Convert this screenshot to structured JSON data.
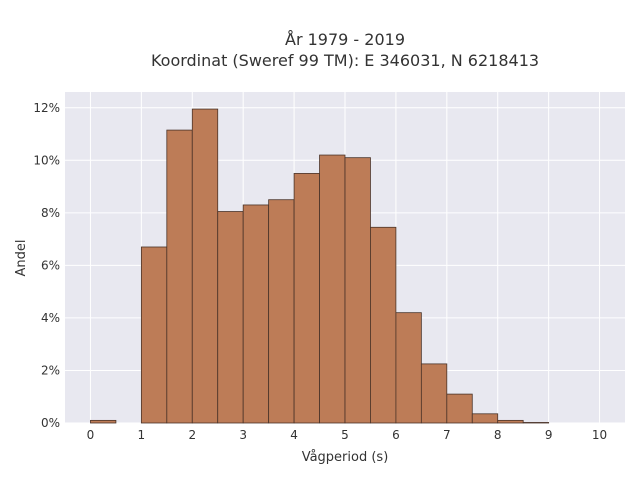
{
  "chart_data": {
    "type": "bar",
    "title_lines": [
      "År 1979 - 2019",
      "Koordinat (Sweref 99 TM): E 346031, N 6218413"
    ],
    "xlabel": "Vågperiod (s)",
    "ylabel": "Andel",
    "bin_width": 0.5,
    "bins": [
      {
        "x0": 0.0,
        "x1": 0.5,
        "value": 0.1
      },
      {
        "x0": 0.5,
        "x1": 1.0,
        "value": 0.0
      },
      {
        "x0": 1.0,
        "x1": 1.5,
        "value": 6.7
      },
      {
        "x0": 1.5,
        "x1": 2.0,
        "value": 11.15
      },
      {
        "x0": 2.0,
        "x1": 2.5,
        "value": 11.95
      },
      {
        "x0": 2.5,
        "x1": 3.0,
        "value": 8.05
      },
      {
        "x0": 3.0,
        "x1": 3.5,
        "value": 8.3
      },
      {
        "x0": 3.5,
        "x1": 4.0,
        "value": 8.5
      },
      {
        "x0": 4.0,
        "x1": 4.5,
        "value": 9.5
      },
      {
        "x0": 4.5,
        "x1": 5.0,
        "value": 10.2
      },
      {
        "x0": 5.0,
        "x1": 5.5,
        "value": 10.1
      },
      {
        "x0": 5.5,
        "x1": 6.0,
        "value": 7.45
      },
      {
        "x0": 6.0,
        "x1": 6.5,
        "value": 4.2
      },
      {
        "x0": 6.5,
        "x1": 7.0,
        "value": 2.25
      },
      {
        "x0": 7.0,
        "x1": 7.5,
        "value": 1.1
      },
      {
        "x0": 7.5,
        "x1": 8.0,
        "value": 0.35
      },
      {
        "x0": 8.0,
        "x1": 8.5,
        "value": 0.1
      },
      {
        "x0": 8.5,
        "x1": 9.0,
        "value": 0.02
      }
    ],
    "xlim": [
      -0.5,
      10.5
    ],
    "ylim": [
      0,
      12.6
    ],
    "x_ticks": [
      0,
      1,
      2,
      3,
      4,
      5,
      6,
      7,
      8,
      9,
      10
    ],
    "x_tick_labels": [
      "0",
      "1",
      "2",
      "3",
      "4",
      "5",
      "6",
      "7",
      "8",
      "9",
      "10"
    ],
    "y_ticks": [
      0,
      2,
      4,
      6,
      8,
      10,
      12
    ],
    "y_tick_labels": [
      "0%",
      "2%",
      "4%",
      "6%",
      "8%",
      "10%",
      "12%"
    ],
    "grid": true,
    "colors": {
      "bar_fill": "#bd7c57",
      "bar_stroke": "#4a3328",
      "plot_bg": "#e8e8f0",
      "grid": "#ffffff",
      "text": "#333333"
    }
  }
}
